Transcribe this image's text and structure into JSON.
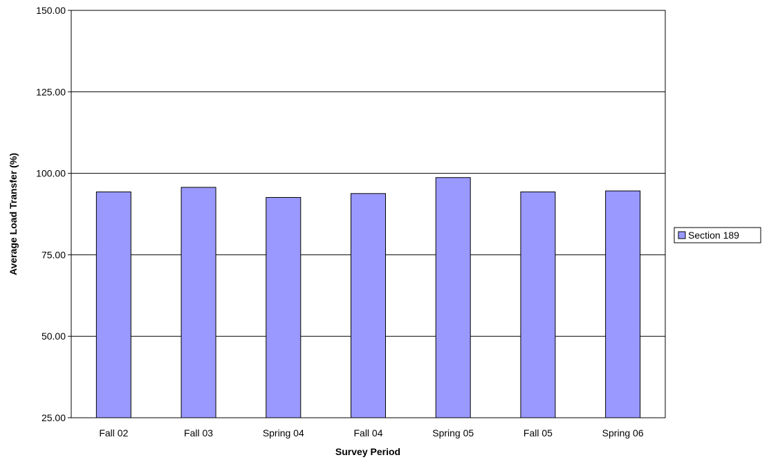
{
  "chart_data": {
    "type": "bar",
    "title": "",
    "xlabel": "Survey Period",
    "ylabel": "Average Load Transfer (%)",
    "categories": [
      "Fall 02",
      "Fall 03",
      "Spring 04",
      "Fall 04",
      "Spring 05",
      "Fall 05",
      "Spring 06"
    ],
    "series": [
      {
        "name": "Section 189",
        "color": "#9999ff",
        "values": [
          94.3,
          95.7,
          92.6,
          93.8,
          98.7,
          94.3,
          94.6
        ]
      }
    ],
    "ylim": [
      25,
      150
    ],
    "yticks": [
      25,
      50,
      75,
      100,
      125,
      150
    ],
    "ytick_labels": [
      "25.00",
      "50.00",
      "75.00",
      "100.00",
      "125.00",
      "150.00"
    ],
    "grid": "horizontal",
    "legend_position": "right"
  }
}
